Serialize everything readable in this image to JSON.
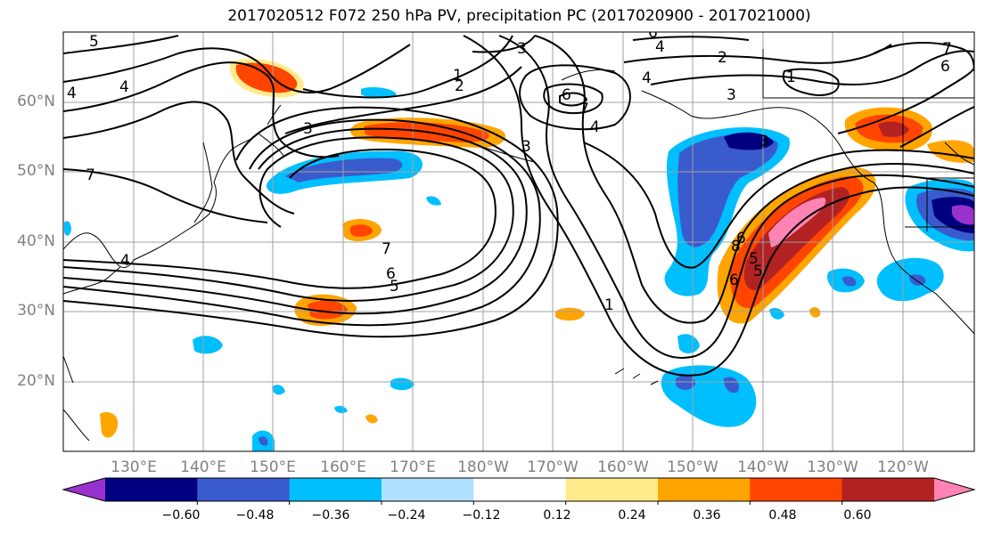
{
  "title": "2017020512 F072 250 hPa PV, precipitation PC (2017020900 - 2017021000)",
  "lat_labels": [
    "60°N",
    "50°N",
    "40°N",
    "30°N",
    "20°N"
  ],
  "lon_labels": [
    "130°E",
    "140°E",
    "150°E",
    "160°E",
    "170°E",
    "180°W",
    "170°W",
    "160°W",
    "150°W",
    "140°W",
    "130°W",
    "120°W"
  ],
  "colorbar": {
    "colors": [
      "#9932CC",
      "#000080",
      "#3A5BCD",
      "#00BFFF",
      "#B0E0FF",
      "#FFFFFF",
      "#FFEB8B",
      "#FFA500",
      "#FF4500",
      "#B22222",
      "#FF83B4"
    ],
    "tick_labels": [
      "−0.60",
      "−0.48",
      "−0.36",
      "−0.24",
      "−0.12",
      "0.12",
      "0.24",
      "0.36",
      "0.48",
      "0.60"
    ]
  },
  "contour_labels": [
    "5",
    "4",
    "3",
    "2",
    "1",
    "6",
    "7",
    "6",
    "4",
    "3",
    "2",
    "1",
    "7",
    "7",
    "6",
    "5",
    "1",
    "3",
    "6",
    "5",
    "4",
    "3",
    "7",
    "6",
    "4",
    "3",
    "8",
    "4",
    "4",
    "5",
    "6",
    "7"
  ]
}
